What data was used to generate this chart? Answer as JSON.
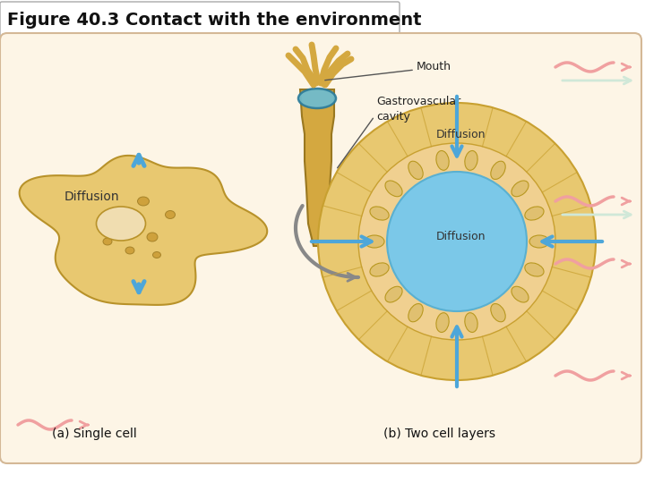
{
  "title": "Figure 40.3 Contact with the environment",
  "bg_color": "#ffffff",
  "panel_bg": "#fdf5e6",
  "panel_border": "#d4b896",
  "labels": {
    "mouth": "Mouth",
    "gastrovascular": "Gastrovascular\ncavity",
    "diffusion_left": "Diffusion",
    "diffusion_right_top": "Diffusion",
    "diffusion_right_center": "Diffusion",
    "caption_left": "(a) Single cell",
    "caption_right": "(b) Two cell layers"
  },
  "arrow_color_blue": "#4da6d9",
  "arrow_color_pink": "#f0a0a0",
  "arrow_color_white": "#e8f4f0",
  "cell_color_outer": "#e8c870",
  "cell_color_inner": "#d4a840",
  "cell_nucleus": "#f5e8d0",
  "cell_spots": "#c89830",
  "hydra_color": "#d4a840",
  "hydra_blue": "#6bbdd4",
  "circle_outer": "#e8c870",
  "circle_inner_ring": "#f0d080",
  "circle_core": "#7bc8e8",
  "title_fontsize": 14,
  "label_fontsize": 10,
  "caption_fontsize": 10
}
